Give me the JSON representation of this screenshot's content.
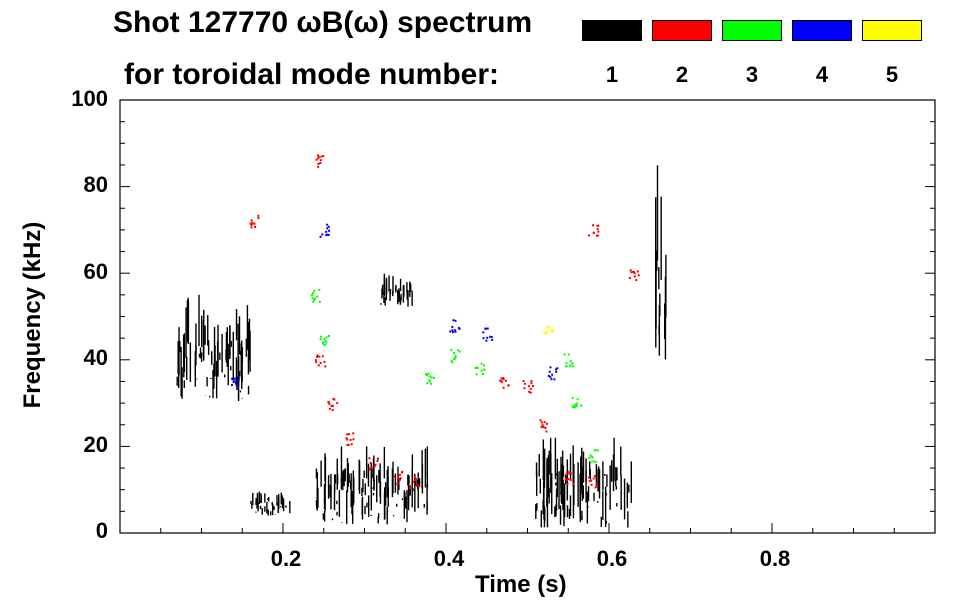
{
  "header": {
    "title_line1": "Shot 127770 ωB(ω) spectrum",
    "title_line2": "for toroidal mode number:"
  },
  "legend": [
    {
      "label": "1",
      "color": "#000000"
    },
    {
      "label": "2",
      "color": "#ff0000"
    },
    {
      "label": "3",
      "color": "#00ff00"
    },
    {
      "label": "4",
      "color": "#0000ff"
    },
    {
      "label": "5",
      "color": "#ffff00"
    }
  ],
  "chart_data": {
    "type": "heatmap",
    "title": "Shot 127770 ωB(ω) spectrum for toroidal mode number:",
    "xlabel": "Time (s)",
    "ylabel": "Frequency (kHz)",
    "xlim": [
      0.0,
      1.0
    ],
    "ylim": [
      0,
      100
    ],
    "x_ticks": [
      {
        "value": 0.2,
        "label": "0.2"
      },
      {
        "value": 0.4,
        "label": "0.4"
      },
      {
        "value": 0.6,
        "label": "0.6"
      },
      {
        "value": 0.8,
        "label": "0.8"
      }
    ],
    "y_ticks": [
      {
        "value": 0,
        "label": "0"
      },
      {
        "value": 20,
        "label": "20"
      },
      {
        "value": 40,
        "label": "40"
      },
      {
        "value": 60,
        "label": "60"
      },
      {
        "value": 80,
        "label": "80"
      },
      {
        "value": 100,
        "label": "100"
      }
    ],
    "series": [
      {
        "name": "n=1",
        "color": "#000000",
        "regions": [
          {
            "t": [
              0.07,
              0.16
            ],
            "f": [
              30,
              55
            ]
          },
          {
            "t": [
              0.16,
              0.21
            ],
            "f": [
              4,
              10
            ]
          },
          {
            "t": [
              0.24,
              0.38
            ],
            "f": [
              2,
              20
            ]
          },
          {
            "t": [
              0.32,
              0.36
            ],
            "f": [
              52,
              60
            ]
          },
          {
            "t": [
              0.51,
              0.63
            ],
            "f": [
              1,
              22
            ]
          },
          {
            "t": [
              0.655,
              0.67
            ],
            "f": [
              40,
              85
            ]
          }
        ]
      },
      {
        "name": "n=2",
        "color": "#ff0000",
        "points": [
          {
            "t": 0.245,
            "f": 40
          },
          {
            "t": 0.26,
            "f": 30
          },
          {
            "t": 0.28,
            "f": 22
          },
          {
            "t": 0.31,
            "f": 16
          },
          {
            "t": 0.34,
            "f": 13
          },
          {
            "t": 0.36,
            "f": 12
          },
          {
            "t": 0.52,
            "f": 25
          },
          {
            "t": 0.55,
            "f": 13
          },
          {
            "t": 0.58,
            "f": 12
          },
          {
            "t": 0.165,
            "f": 72
          },
          {
            "t": 0.245,
            "f": 86
          },
          {
            "t": 0.58,
            "f": 70
          },
          {
            "t": 0.63,
            "f": 60
          },
          {
            "t": 0.47,
            "f": 35
          },
          {
            "t": 0.5,
            "f": 34
          }
        ]
      },
      {
        "name": "n=3",
        "color": "#00ff00",
        "points": [
          {
            "t": 0.24,
            "f": 55
          },
          {
            "t": 0.25,
            "f": 45
          },
          {
            "t": 0.38,
            "f": 36
          },
          {
            "t": 0.41,
            "f": 41
          },
          {
            "t": 0.44,
            "f": 38
          },
          {
            "t": 0.55,
            "f": 40
          },
          {
            "t": 0.56,
            "f": 30
          },
          {
            "t": 0.58,
            "f": 18
          }
        ]
      },
      {
        "name": "n=4",
        "color": "#0000ff",
        "points": [
          {
            "t": 0.41,
            "f": 48
          },
          {
            "t": 0.45,
            "f": 46
          },
          {
            "t": 0.53,
            "f": 37
          },
          {
            "t": 0.25,
            "f": 70
          },
          {
            "t": 0.14,
            "f": 35
          }
        ]
      },
      {
        "name": "n=5",
        "color": "#ffff00",
        "points": [
          {
            "t": 0.525,
            "f": 47
          }
        ]
      }
    ]
  }
}
